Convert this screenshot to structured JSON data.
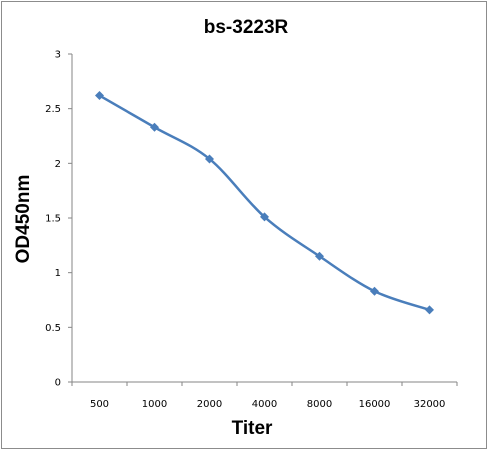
{
  "chart_data": {
    "type": "line",
    "title": "bs-3223R",
    "xlabel": "Titer",
    "ylabel": "OD450nm",
    "categories": [
      "500",
      "1000",
      "2000",
      "4000",
      "8000",
      "16000",
      "32000"
    ],
    "series": [
      {
        "values": [
          2.62,
          2.33,
          2.04,
          1.51,
          1.15,
          0.83,
          0.66
        ]
      }
    ],
    "ylim": [
      0,
      3
    ],
    "yticks": [
      "0",
      "0.5",
      "1",
      "1.5",
      "2",
      "2.5",
      "3"
    ],
    "grid": false,
    "legend": "none",
    "smooth": true,
    "marker": "diamond",
    "color": "#4a7ebb"
  }
}
